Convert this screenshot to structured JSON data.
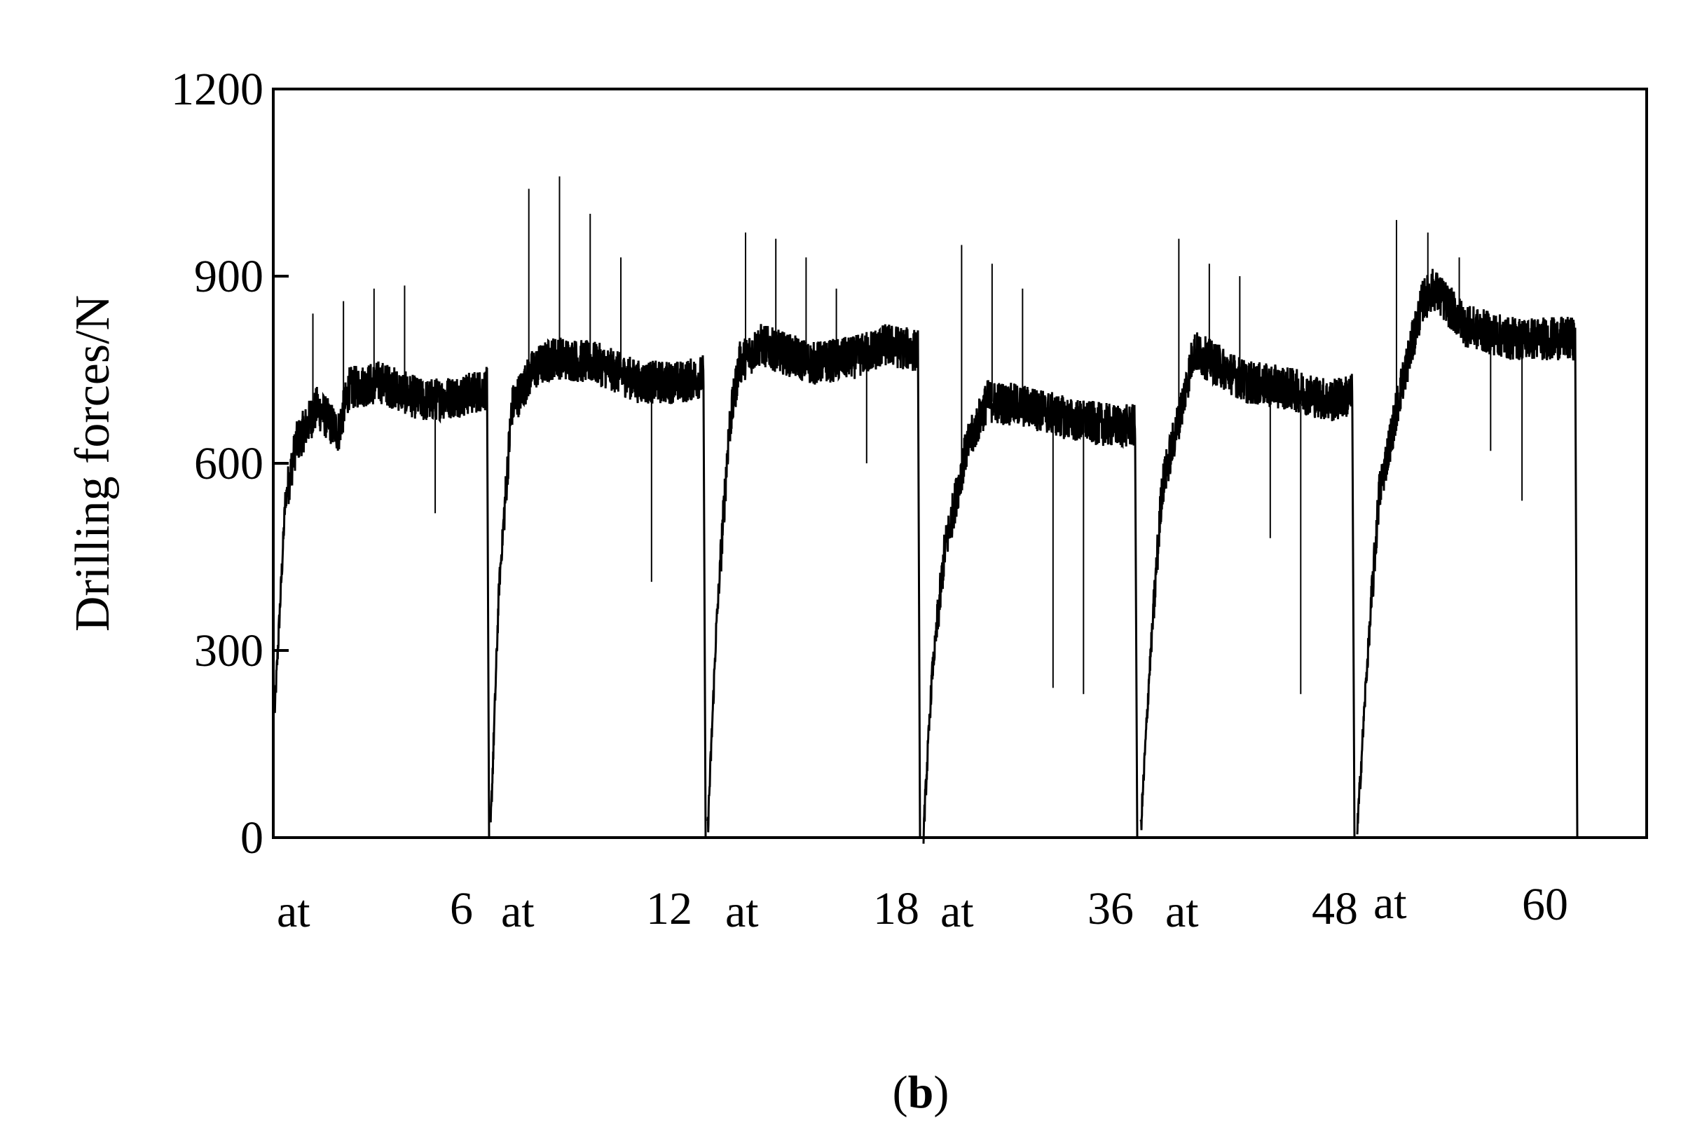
{
  "chart_data": {
    "type": "line",
    "title": "",
    "xlabel": "",
    "ylabel": "Drilling forces/N",
    "ylim": [
      0,
      1200
    ],
    "yticks": [
      0,
      300,
      600,
      900,
      1200
    ],
    "grid": false,
    "legend": "none",
    "line_color": "#000000",
    "segment_labels": [
      {
        "start": "at",
        "end": "6"
      },
      {
        "start": "at",
        "end": "12"
      },
      {
        "start": "at",
        "end": "18"
      },
      {
        "start": "at",
        "end": "36"
      },
      {
        "start": "at",
        "end": "48"
      },
      {
        "start": "at",
        "end": "60"
      }
    ],
    "segments": [
      {
        "name": "6",
        "start_value": 200,
        "profile": [
          [
            0,
            200
          ],
          [
            0.05,
            540
          ],
          [
            0.1,
            630
          ],
          [
            0.2,
            690
          ],
          [
            0.3,
            650
          ],
          [
            0.35,
            720
          ],
          [
            0.5,
            730
          ],
          [
            0.7,
            700
          ],
          [
            0.9,
            710
          ],
          [
            1,
            720
          ]
        ],
        "spikes": [
          840,
          860,
          880,
          885,
          520
        ]
      },
      {
        "name": "12",
        "start_value": 10,
        "profile": [
          [
            0,
            10
          ],
          [
            0.04,
            400
          ],
          [
            0.1,
            690
          ],
          [
            0.2,
            750
          ],
          [
            0.3,
            770
          ],
          [
            0.5,
            760
          ],
          [
            0.7,
            730
          ],
          [
            0.9,
            730
          ],
          [
            1,
            740
          ]
        ],
        "spikes": [
          1040,
          1060,
          1000,
          930,
          410
        ]
      },
      {
        "name": "18",
        "start_value": 10,
        "profile": [
          [
            0,
            10
          ],
          [
            0.04,
            330
          ],
          [
            0.1,
            650
          ],
          [
            0.15,
            760
          ],
          [
            0.25,
            790
          ],
          [
            0.5,
            760
          ],
          [
            0.7,
            770
          ],
          [
            0.85,
            790
          ],
          [
            1,
            780
          ]
        ],
        "spikes": [
          970,
          960,
          930,
          880,
          600
        ]
      },
      {
        "name": "36",
        "start_value": 10,
        "profile": [
          [
            0,
            10
          ],
          [
            0.04,
            260
          ],
          [
            0.1,
            460
          ],
          [
            0.2,
            620
          ],
          [
            0.3,
            700
          ],
          [
            0.5,
            690
          ],
          [
            0.7,
            670
          ],
          [
            0.9,
            660
          ],
          [
            1,
            660
          ]
        ],
        "spikes": [
          950,
          920,
          880,
          240,
          230
        ]
      },
      {
        "name": "48",
        "start_value": 10,
        "profile": [
          [
            0,
            10
          ],
          [
            0.04,
            260
          ],
          [
            0.1,
            560
          ],
          [
            0.2,
            700
          ],
          [
            0.25,
            780
          ],
          [
            0.5,
            730
          ],
          [
            0.7,
            720
          ],
          [
            0.9,
            700
          ],
          [
            1,
            710
          ]
        ],
        "spikes": [
          960,
          920,
          900,
          480,
          230
        ]
      },
      {
        "name": "60",
        "start_value": 10,
        "profile": [
          [
            0,
            10
          ],
          [
            0.04,
            250
          ],
          [
            0.1,
            550
          ],
          [
            0.2,
            720
          ],
          [
            0.3,
            860
          ],
          [
            0.35,
            880
          ],
          [
            0.5,
            820
          ],
          [
            0.7,
            800
          ],
          [
            0.9,
            800
          ],
          [
            1,
            800
          ]
        ],
        "spikes": [
          990,
          970,
          930,
          620,
          540
        ]
      }
    ],
    "panel_label": {
      "open": "(",
      "letter": "b",
      "close": ")"
    }
  }
}
